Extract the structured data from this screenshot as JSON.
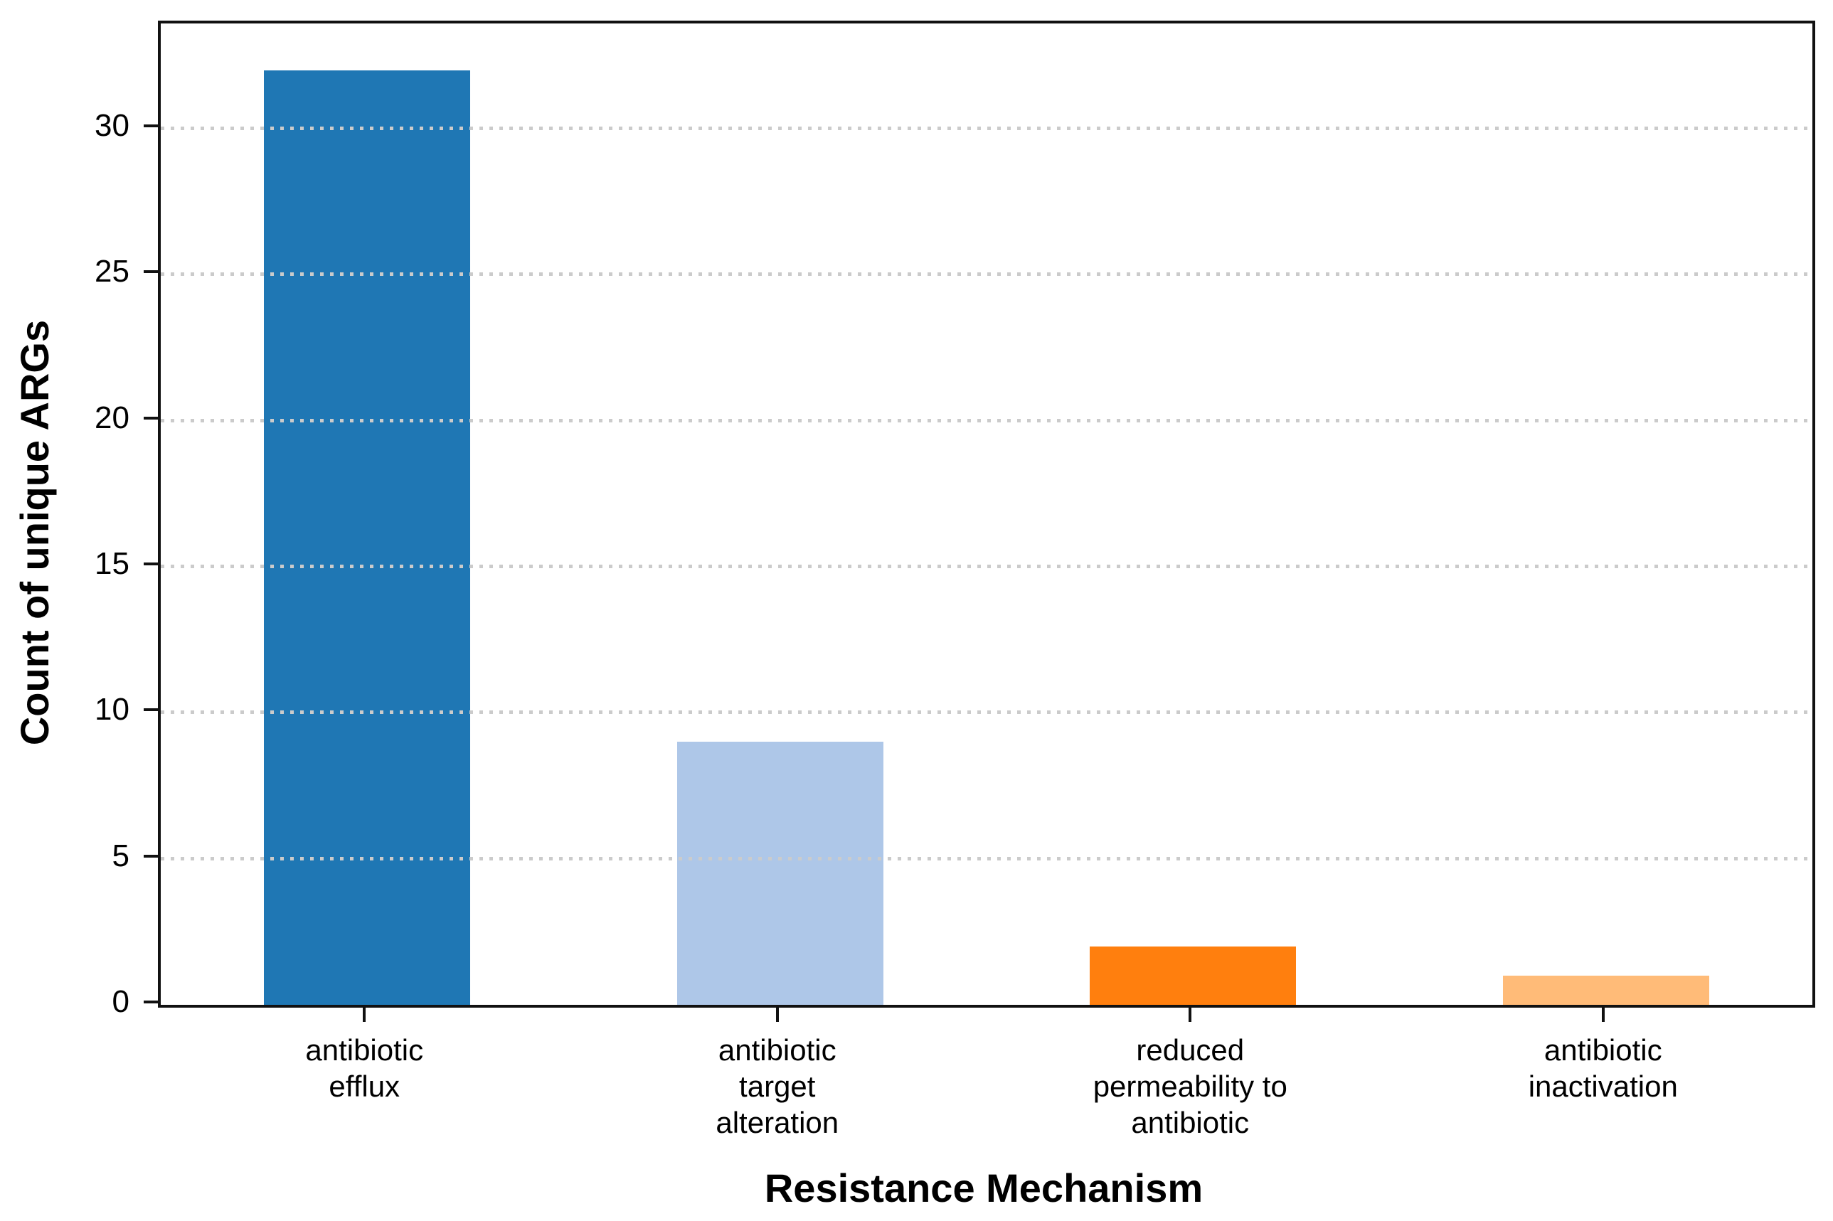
{
  "chart_data": {
    "type": "bar",
    "title": "",
    "xlabel": "Resistance Mechanism",
    "ylabel": "Count of unique ARGs",
    "categories": [
      "antibiotic\nefflux",
      "antibiotic\ntarget\nalteration",
      "reduced\npermeability to\nantibiotic",
      "antibiotic\ninactivation"
    ],
    "values": [
      32,
      9,
      2,
      1
    ],
    "bar_colors": [
      "#1f77b4",
      "#aec7e8",
      "#ff7f0e",
      "#ffbb78"
    ],
    "bar_width_fraction": 0.5,
    "ylim": [
      0,
      33.6
    ],
    "yticks": [
      0,
      5,
      10,
      15,
      20,
      25,
      30
    ],
    "grid": {
      "axis": "y",
      "style": "dotted",
      "color": "#cbcbcb",
      "on_top_of_bars": true
    },
    "legend": "none",
    "plot_background": "#ffffff",
    "spine_color": "#111111"
  }
}
